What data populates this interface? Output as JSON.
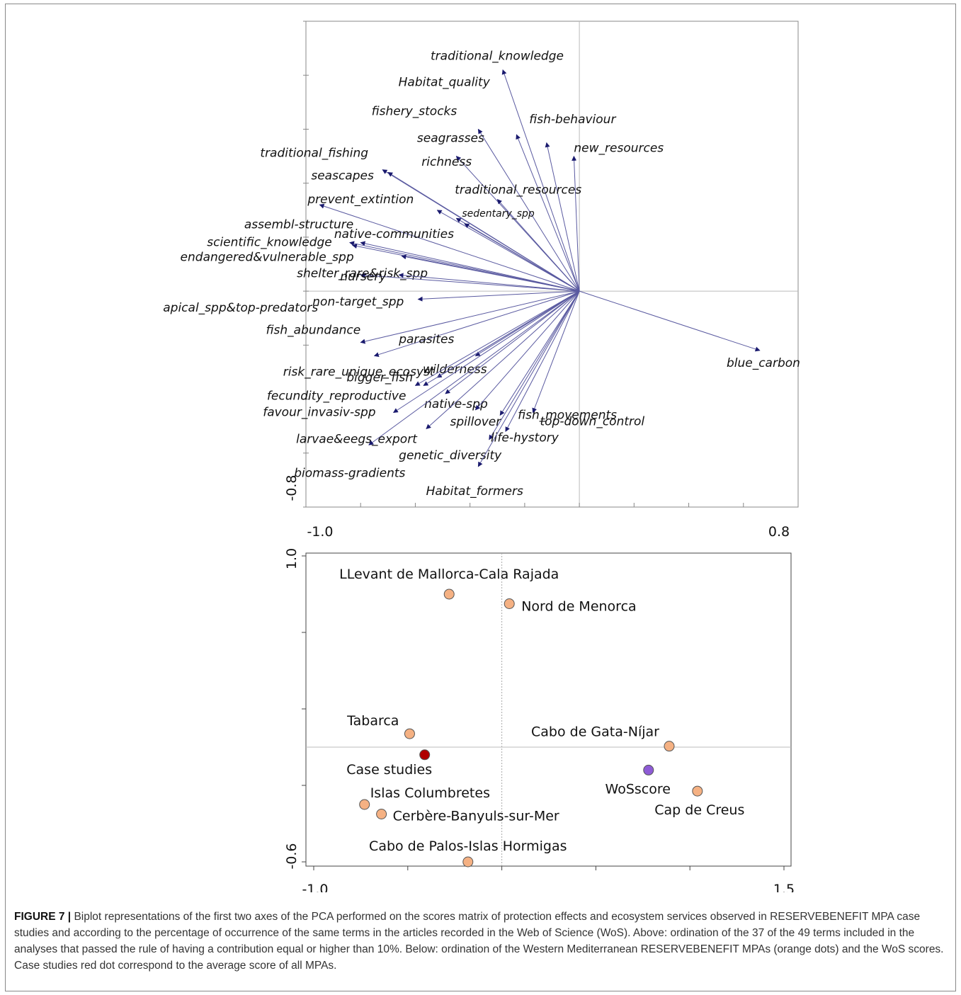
{
  "figure": {
    "caption_label": "FIGURE 7 |",
    "caption_text": "Biplot representations of the first two axes of the PCA performed on the scores matrix of protection effects and ecosystem services observed in RESERVEBENEFIT MPA case studies and according to the percentage of occurrence of the same terms in the articles recorded in the Web of Science (WoS). Above: ordination of the 37 of the 49 terms included in the analyses that passed the rule of having a contribution equal or higher than 10%. Below: ordination of the Western Mediterranean RESERVEBENEFIT MPAs (orange dots) and the WoS scores. Case studies red dot correspond to the average score of all MPAs."
  },
  "chart_data": [
    {
      "type": "scatter",
      "subtype": "biplot-vectors",
      "xlim": [
        -1.0,
        0.8
      ],
      "ylim": [
        -0.8,
        1.0
      ],
      "x_tick_labels": [
        "-1.0",
        "0.8"
      ],
      "y_tick_labels": [
        "-0.8"
      ],
      "origin": [
        0.0,
        0.0
      ],
      "arrow_color": "#1a1a6e",
      "arrows": [
        {
          "label": "traditional_knowledge",
          "x": -0.28,
          "y": 0.82
        },
        {
          "label": "fishery_stocks",
          "x": -0.37,
          "y": 0.6
        },
        {
          "label": "fish-behaviour",
          "x": -0.23,
          "y": 0.58
        },
        {
          "label": "seagrasses",
          "x": -0.45,
          "y": 0.5
        },
        {
          "label": "new_resources",
          "x": -0.02,
          "y": 0.5
        },
        {
          "label": "Habitat_quality",
          "x": -0.12,
          "y": 0.55
        },
        {
          "label": "traditional_fishing",
          "x": -0.72,
          "y": 0.45
        },
        {
          "label": "seascapes",
          "x": -0.7,
          "y": 0.44
        },
        {
          "label": "traditional_resources",
          "x": -0.3,
          "y": 0.34
        },
        {
          "label": "richness",
          "x": -0.95,
          "y": 0.32
        },
        {
          "label": "prevent_extintion",
          "x": -0.52,
          "y": 0.3
        },
        {
          "label": "sedentary_spp",
          "x": -0.45,
          "y": 0.27
        },
        {
          "label": "native-communities",
          "x": -0.42,
          "y": 0.25
        },
        {
          "label": "assembl-structure",
          "x": -0.8,
          "y": 0.18
        },
        {
          "label": "scientific_knowledge",
          "x": -0.84,
          "y": 0.18
        },
        {
          "label": "endangered&vulnerable_spp",
          "x": -0.83,
          "y": 0.17
        },
        {
          "label": "shelter_rare&risk_spp",
          "x": -0.65,
          "y": 0.13
        },
        {
          "label": "apical_spp&top-predators",
          "x": -0.8,
          "y": 0.06
        },
        {
          "label": "nursery",
          "x": -0.66,
          "y": 0.06
        },
        {
          "label": "non-target_spp",
          "x": -0.59,
          "y": -0.03
        },
        {
          "label": "fish_abundance",
          "x": -0.8,
          "y": -0.19
        },
        {
          "label": "risk_rare_unique_ecosyst",
          "x": -0.75,
          "y": -0.24
        },
        {
          "label": "parasites",
          "x": -0.38,
          "y": -0.24
        },
        {
          "label": "wilderness",
          "x": -0.52,
          "y": -0.32
        },
        {
          "label": "bigger_fish",
          "x": -0.57,
          "y": -0.35
        },
        {
          "label": "fecundity_reproductive",
          "x": -0.6,
          "y": -0.35
        },
        {
          "label": "native-spp",
          "x": -0.49,
          "y": -0.38
        },
        {
          "label": "favour_invasiv-spp",
          "x": -0.68,
          "y": -0.45
        },
        {
          "label": "spillover",
          "x": -0.38,
          "y": -0.44
        },
        {
          "label": "larvae&eegs_export",
          "x": -0.56,
          "y": -0.51
        },
        {
          "label": "genetic_diversity",
          "x": -0.33,
          "y": -0.55
        },
        {
          "label": "biomass-gradients",
          "x": -0.77,
          "y": -0.57
        },
        {
          "label": "life-hystory",
          "x": -0.27,
          "y": -0.52
        },
        {
          "label": "fish_movements",
          "x": -0.29,
          "y": -0.46
        },
        {
          "label": "top-down_control",
          "x": -0.17,
          "y": -0.45
        },
        {
          "label": "Habitat_formers",
          "x": -0.37,
          "y": -0.65
        },
        {
          "label": "blue_carbon",
          "x": 0.66,
          "y": -0.22
        }
      ]
    },
    {
      "type": "scatter",
      "xlim": [
        -1.0,
        1.5
      ],
      "ylim": [
        -0.6,
        1.0
      ],
      "x_tick_labels": [
        "-1.0",
        "1.5"
      ],
      "y_tick_labels": [
        "1.0",
        "-0.6"
      ],
      "points": [
        {
          "label": "LLevant de Mallorca-Cala Rajada",
          "x": -0.28,
          "y": 0.8,
          "color": "#f5b183"
        },
        {
          "label": "Nord de Menorca",
          "x": 0.04,
          "y": 0.75,
          "color": "#f5b183"
        },
        {
          "label": "Tabarca",
          "x": -0.49,
          "y": 0.07,
          "color": "#f5b183"
        },
        {
          "label": "Case studies",
          "x": -0.41,
          "y": -0.04,
          "color": "#b00000"
        },
        {
          "label": "Cabo de Gata-Níjar",
          "x": 0.89,
          "y": 0.005,
          "color": "#f5b183"
        },
        {
          "label": "WoSscore",
          "x": 0.78,
          "y": -0.12,
          "color": "#8e5bd6"
        },
        {
          "label": "Cap de Creus",
          "x": 1.04,
          "y": -0.23,
          "color": "#f5b183"
        },
        {
          "label": "Islas Columbretes",
          "x": -0.73,
          "y": -0.3,
          "color": "#f5b183"
        },
        {
          "label": "Cerbère-Banyuls-sur-Mer",
          "x": -0.64,
          "y": -0.35,
          "color": "#f5b183"
        },
        {
          "label": "Cabo de Palos-Islas Hormigas",
          "x": -0.18,
          "y": -0.6,
          "color": "#f5b183"
        }
      ]
    }
  ]
}
